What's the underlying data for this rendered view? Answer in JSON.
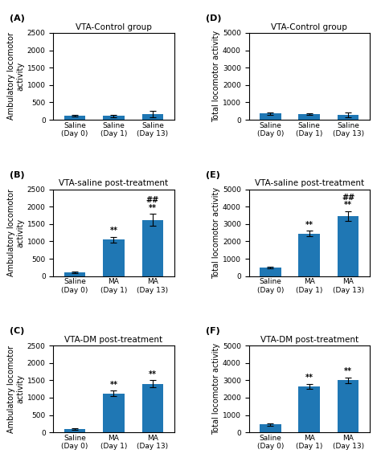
{
  "chart_data": [
    {
      "type": "bar",
      "label": "(A)",
      "title": "VTA-Control group",
      "ylabel": "Ambulatory locomotor\nactivity",
      "ylim": [
        0,
        2500
      ],
      "yticks": [
        0,
        500,
        1000,
        1500,
        2000,
        2500
      ],
      "categories": [
        "Saline\n(Day 0)",
        "Saline\n(Day 1)",
        "Saline\n(Day 13)"
      ],
      "values": [
        120,
        110,
        170
      ],
      "errors": [
        30,
        30,
        90
      ],
      "annotations": [
        null,
        null,
        null
      ]
    },
    {
      "type": "bar",
      "label": "(D)",
      "title": "VTA-Control group",
      "ylabel": "Total locomotor activity",
      "ylim": [
        0,
        5000
      ],
      "yticks": [
        0,
        1000,
        2000,
        3000,
        4000,
        5000
      ],
      "categories": [
        "Saline\n(Day 0)",
        "Saline\n(Day 1)",
        "Saline\n(Day 13)"
      ],
      "values": [
        350,
        330,
        280
      ],
      "errors": [
        50,
        50,
        120
      ],
      "annotations": [
        null,
        null,
        null
      ]
    },
    {
      "type": "bar",
      "label": "(B)",
      "title": "VTA-saline post-treatment",
      "ylabel": "Ambulatory locomotor\nactivity",
      "ylim": [
        0,
        2500
      ],
      "yticks": [
        0,
        500,
        1000,
        1500,
        2000,
        2500
      ],
      "categories": [
        "Saline\n(Day 0)",
        "MA\n(Day 1)",
        "MA\n(Day 13)"
      ],
      "values": [
        100,
        1050,
        1620
      ],
      "errors": [
        20,
        80,
        170
      ],
      "annotations": [
        null,
        "**",
        "##\n**"
      ]
    },
    {
      "type": "bar",
      "label": "(E)",
      "title": "VTA-saline post-treatment",
      "ylabel": "Total locomotor activity",
      "ylim": [
        0,
        5000
      ],
      "yticks": [
        0,
        1000,
        2000,
        3000,
        4000,
        5000
      ],
      "categories": [
        "Saline\n(Day 0)",
        "MA\n(Day 1)",
        "MA\n(Day 13)"
      ],
      "values": [
        500,
        2450,
        3450
      ],
      "errors": [
        60,
        150,
        280
      ],
      "annotations": [
        null,
        "**",
        "##\n**"
      ]
    },
    {
      "type": "bar",
      "label": "(C)",
      "title": "VTA-DM post-treatment",
      "ylabel": "Ambulatory locomotor\nactivity",
      "ylim": [
        0,
        2500
      ],
      "yticks": [
        0,
        500,
        1000,
        1500,
        2000,
        2500
      ],
      "categories": [
        "Saline\n(Day 0)",
        "MA\n(Day 1)",
        "MA\n(Day 13)"
      ],
      "values": [
        100,
        1120,
        1400
      ],
      "errors": [
        20,
        80,
        100
      ],
      "annotations": [
        null,
        "**",
        "**"
      ]
    },
    {
      "type": "bar",
      "label": "(F)",
      "title": "VTA-DM post-treatment",
      "ylabel": "Total locomotor activity",
      "ylim": [
        0,
        5000
      ],
      "yticks": [
        0,
        1000,
        2000,
        3000,
        4000,
        5000
      ],
      "categories": [
        "Saline\n(Day 0)",
        "MA\n(Day 1)",
        "MA\n(Day 13)"
      ],
      "values": [
        450,
        2650,
        3000
      ],
      "errors": [
        60,
        150,
        150
      ],
      "annotations": [
        null,
        "**",
        "**"
      ]
    }
  ]
}
